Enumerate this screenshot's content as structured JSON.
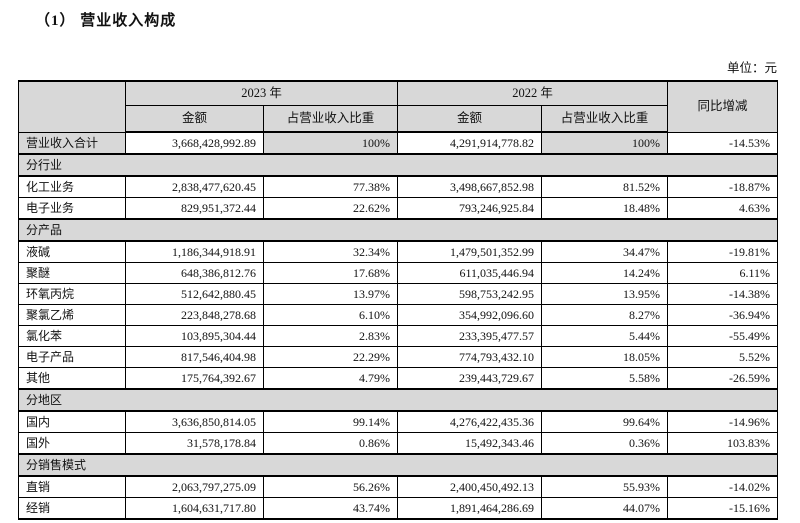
{
  "page": {
    "title": "（1） 营业收入构成",
    "unit_label": "单位：元"
  },
  "table": {
    "headers": {
      "year_2023": "2023 年",
      "year_2022": "2022 年",
      "amount": "金额",
      "ratio": "占营业收入比重",
      "yoy": "同比增减"
    },
    "rows": [
      {
        "type": "total",
        "label": "营业收入合计",
        "amount_2023": "3,668,428,992.89",
        "ratio_2023": "100%",
        "amount_2022": "4,291,914,778.82",
        "ratio_2022": "100%",
        "yoy": "-14.53%"
      },
      {
        "type": "section",
        "label": "分行业"
      },
      {
        "type": "data",
        "label": "化工业务",
        "amount_2023": "2,838,477,620.45",
        "ratio_2023": "77.38%",
        "amount_2022": "3,498,667,852.98",
        "ratio_2022": "81.52%",
        "yoy": "-18.87%"
      },
      {
        "type": "data",
        "label": "电子业务",
        "amount_2023": "829,951,372.44",
        "ratio_2023": "22.62%",
        "amount_2022": "793,246,925.84",
        "ratio_2022": "18.48%",
        "yoy": "4.63%"
      },
      {
        "type": "section",
        "label": "分产品"
      },
      {
        "type": "data",
        "label": "液碱",
        "amount_2023": "1,186,344,918.91",
        "ratio_2023": "32.34%",
        "amount_2022": "1,479,501,352.99",
        "ratio_2022": "34.47%",
        "yoy": "-19.81%"
      },
      {
        "type": "data",
        "label": "聚醚",
        "amount_2023": "648,386,812.76",
        "ratio_2023": "17.68%",
        "amount_2022": "611,035,446.94",
        "ratio_2022": "14.24%",
        "yoy": "6.11%"
      },
      {
        "type": "data",
        "label": "环氧丙烷",
        "amount_2023": "512,642,880.45",
        "ratio_2023": "13.97%",
        "amount_2022": "598,753,242.95",
        "ratio_2022": "13.95%",
        "yoy": "-14.38%"
      },
      {
        "type": "data",
        "label": "聚氯乙烯",
        "amount_2023": "223,848,278.68",
        "ratio_2023": "6.10%",
        "amount_2022": "354,992,096.60",
        "ratio_2022": "8.27%",
        "yoy": "-36.94%"
      },
      {
        "type": "data",
        "label": "氯化苯",
        "amount_2023": "103,895,304.44",
        "ratio_2023": "2.83%",
        "amount_2022": "233,395,477.57",
        "ratio_2022": "5.44%",
        "yoy": "-55.49%"
      },
      {
        "type": "data",
        "label": "电子产品",
        "amount_2023": "817,546,404.98",
        "ratio_2023": "22.29%",
        "amount_2022": "774,793,432.10",
        "ratio_2022": "18.05%",
        "yoy": "5.52%"
      },
      {
        "type": "data",
        "label": "其他",
        "amount_2023": "175,764,392.67",
        "ratio_2023": "4.79%",
        "amount_2022": "239,443,729.67",
        "ratio_2022": "5.58%",
        "yoy": "-26.59%"
      },
      {
        "type": "section",
        "label": "分地区"
      },
      {
        "type": "data",
        "label": "国内",
        "amount_2023": "3,636,850,814.05",
        "ratio_2023": "99.14%",
        "amount_2022": "4,276,422,435.36",
        "ratio_2022": "99.64%",
        "yoy": "-14.96%"
      },
      {
        "type": "data",
        "label": "国外",
        "amount_2023": "31,578,178.84",
        "ratio_2023": "0.86%",
        "amount_2022": "15,492,343.46",
        "ratio_2022": "0.36%",
        "yoy": "103.83%"
      },
      {
        "type": "section",
        "label": "分销售模式"
      },
      {
        "type": "data",
        "label": "直销",
        "amount_2023": "2,063,797,275.09",
        "ratio_2023": "56.26%",
        "amount_2022": "2,400,450,492.13",
        "ratio_2022": "55.93%",
        "yoy": "-14.02%"
      },
      {
        "type": "data",
        "label": "经销",
        "amount_2023": "1,604,631,717.80",
        "ratio_2023": "43.74%",
        "amount_2022": "1,891,464,286.69",
        "ratio_2022": "44.07%",
        "yoy": "-15.16%"
      }
    ]
  },
  "colors": {
    "cell_shade": "#d8d8d8",
    "border": "#000000",
    "page_edge_strip": "#e9e9e9"
  }
}
